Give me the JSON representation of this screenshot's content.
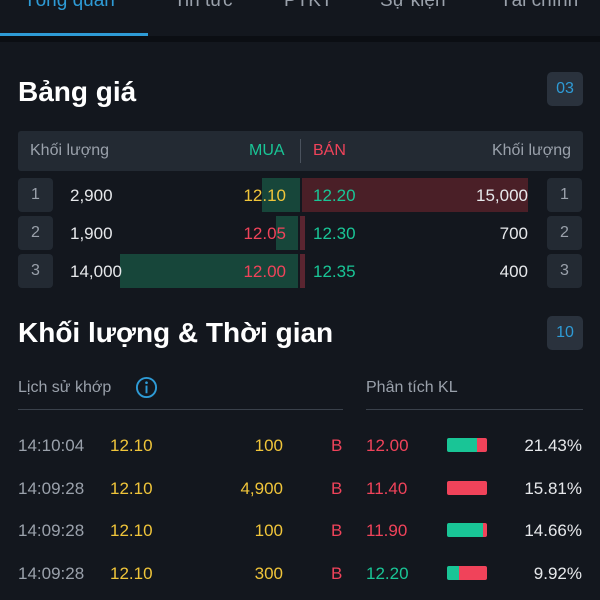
{
  "tabs": [
    "Tổng quan",
    "Tin tức",
    "PTKT",
    "Sự kiện",
    "Tài chính"
  ],
  "colors": {
    "accent": "#2e9bd6",
    "up": "#19c596",
    "down": "#f0435a",
    "ref": "#f0c53a"
  },
  "order_book": {
    "title": "Bảng giá",
    "badge": "03",
    "header": {
      "buy_volume": "Khối lượng",
      "buy": "MUA",
      "sell": "BÁN",
      "sell_volume": "Khối lượng"
    },
    "rows": [
      {
        "num": "1",
        "buy_vol": "2,900",
        "buy_price": "12.10",
        "sell_price": "12.20",
        "sell_vol": "15,000",
        "num_right": "1"
      },
      {
        "num": "2",
        "buy_vol": "1,900",
        "buy_price": "12.05",
        "sell_price": "12.30",
        "sell_vol": "700",
        "num_right": "2"
      },
      {
        "num": "3",
        "buy_vol": "14,000",
        "buy_price": "12.00",
        "sell_price": "12.35",
        "sell_vol": "400",
        "num_right": "3"
      }
    ]
  },
  "volume_time": {
    "title": "Khối lượng & Thời gian",
    "badge": "10",
    "history_label": "Lịch sử khớp",
    "analysis_label": "Phân tích KL",
    "info_icon": "info-icon",
    "trades": [
      {
        "time": "14:10:04",
        "price": "12.10",
        "volume": "100",
        "side": "B"
      },
      {
        "time": "14:09:28",
        "price": "12.10",
        "volume": "4,900",
        "side": "B"
      },
      {
        "time": "14:09:28",
        "price": "12.10",
        "volume": "100",
        "side": "B"
      },
      {
        "time": "14:09:28",
        "price": "12.10",
        "volume": "300",
        "side": "B"
      }
    ],
    "analysis": [
      {
        "price": "12.00",
        "percent": "21.43%",
        "buy_share": 0.75,
        "sell_share": 0.25
      },
      {
        "price": "11.40",
        "percent": "15.81%",
        "buy_share": 0.0,
        "sell_share": 1.0
      },
      {
        "price": "11.90",
        "percent": "14.66%",
        "buy_share": 0.9,
        "sell_share": 0.1
      },
      {
        "price": "12.20",
        "percent": "9.92%",
        "buy_share": 0.3,
        "sell_share": 0.7
      }
    ]
  }
}
